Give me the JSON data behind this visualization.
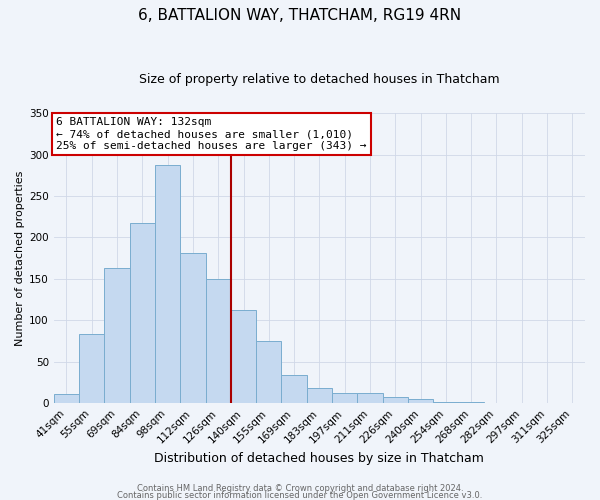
{
  "title": "6, BATTALION WAY, THATCHAM, RG19 4RN",
  "subtitle": "Size of property relative to detached houses in Thatcham",
  "xlabel": "Distribution of detached houses by size in Thatcham",
  "ylabel": "Number of detached properties",
  "bar_labels": [
    "41sqm",
    "55sqm",
    "69sqm",
    "84sqm",
    "98sqm",
    "112sqm",
    "126sqm",
    "140sqm",
    "155sqm",
    "169sqm",
    "183sqm",
    "197sqm",
    "211sqm",
    "226sqm",
    "240sqm",
    "254sqm",
    "268sqm",
    "282sqm",
    "297sqm",
    "311sqm",
    "325sqm"
  ],
  "bar_heights": [
    11,
    84,
    163,
    217,
    287,
    181,
    150,
    113,
    75,
    34,
    18,
    13,
    12,
    8,
    5,
    2,
    2,
    1,
    0,
    0,
    1
  ],
  "bar_color": "#c5d9f0",
  "bar_edge_color": "#7aadcf",
  "vline_index": 6.5,
  "vline_color": "#aa0000",
  "annotation_title": "6 BATTALION WAY: 132sqm",
  "annotation_line1": "← 74% of detached houses are smaller (1,010)",
  "annotation_line2": "25% of semi-detached houses are larger (343) →",
  "annotation_box_facecolor": "#ffffff",
  "annotation_box_edgecolor": "#cc0000",
  "ylim_max": 350,
  "yticks": [
    0,
    50,
    100,
    150,
    200,
    250,
    300,
    350
  ],
  "footer1": "Contains HM Land Registry data © Crown copyright and database right 2024.",
  "footer2": "Contains public sector information licensed under the Open Government Licence v3.0.",
  "bg_color": "#f0f4fa",
  "grid_color": "#d0d8e8",
  "title_fontsize": 11,
  "subtitle_fontsize": 9,
  "ylabel_fontsize": 8,
  "xlabel_fontsize": 9,
  "tick_fontsize": 7.5,
  "annotation_fontsize": 8,
  "footer_fontsize": 6
}
